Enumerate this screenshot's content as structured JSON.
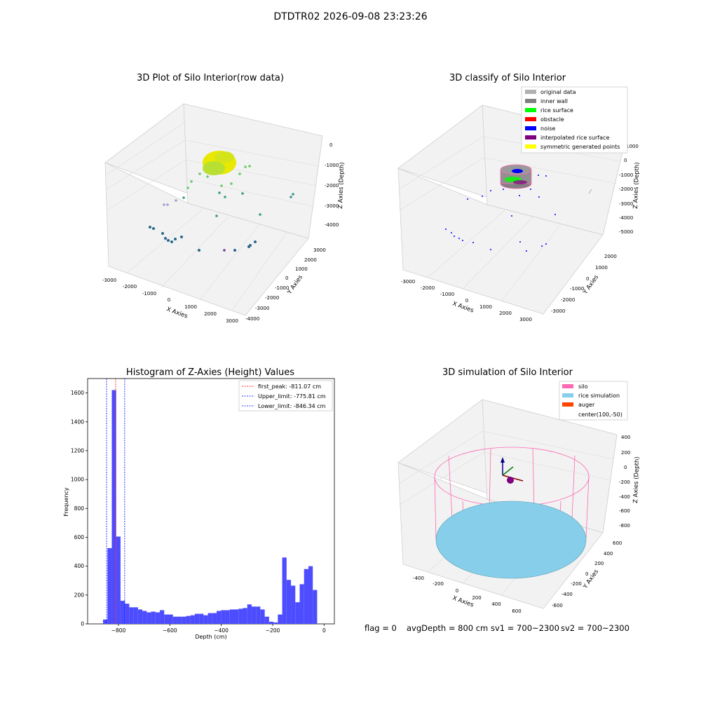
{
  "suptitle": "DTDTR02 2026-09-08 23:23:26",
  "footer": {
    "flag": "flag = 0",
    "avg": "avgDepth = 800 cm",
    "sv1": "sv1 = 700~2300",
    "sv2": "sv2 = 700~2300"
  },
  "chart_data": [
    {
      "type": "scatter",
      "title": "3D Plot of Silo Interior(row data)",
      "xlabel": "X Axies",
      "ylabel": "Y Axies",
      "zlabel": "Z Axies (Depth)",
      "x_ticks": [
        "-3000",
        "-2000",
        "-1000",
        "0",
        "1000",
        "2000",
        "3000"
      ],
      "y_ticks": [
        "3000",
        "2000",
        "1000",
        "0",
        "-1000",
        "-2000",
        "-3000",
        "-4000"
      ],
      "z_ticks": [
        "0",
        "-1000",
        "-2000",
        "-3000",
        "-4000"
      ],
      "colors": {
        "surface": "#e8e800",
        "mid": "#66cc66",
        "low": "#2a6a8a"
      }
    },
    {
      "type": "scatter",
      "title": "3D classify of Silo Interior",
      "xlabel": "X Axies",
      "ylabel": "Y Axies",
      "zlabel": "Z Axies (Depth)",
      "x_ticks": [
        "-3000",
        "-2000",
        "-1000",
        "0",
        "1000",
        "2000",
        "3000"
      ],
      "y_ticks": [
        "2000",
        "1000",
        "0",
        "-1000",
        "-2000",
        "-3000"
      ],
      "z_ticks": [
        "1000",
        "0",
        "-1000",
        "-2000",
        "-3000",
        "-4000",
        "-5000"
      ],
      "legend": [
        {
          "label": "original data",
          "color": "#b0b0b0"
        },
        {
          "label": "inner wall",
          "color": "#808080"
        },
        {
          "label": "rice surface",
          "color": "#00ff00"
        },
        {
          "label": "obstacle",
          "color": "#ff0000"
        },
        {
          "label": "noise",
          "color": "#0000ff"
        },
        {
          "label": "interpolated rice surface",
          "color": "#800080"
        },
        {
          "label": "symmetric generated points",
          "color": "#ffff00"
        }
      ]
    },
    {
      "type": "bar",
      "title": "Histogram of Z-Axies (Height) Values",
      "xlabel": "Depth (cm)",
      "ylabel": "Frequency",
      "xlim": [
        -920,
        40
      ],
      "ylim": [
        0,
        1700
      ],
      "x_ticks": [
        -800,
        -600,
        -400,
        -200,
        0
      ],
      "y_ticks": [
        0,
        200,
        400,
        600,
        800,
        1000,
        1200,
        1400,
        1600
      ],
      "bar_color": "#4d4dff",
      "bins": [
        {
          "x0": -860,
          "x1": -843,
          "count": 30
        },
        {
          "x0": -843,
          "x1": -826,
          "count": 525
        },
        {
          "x0": -826,
          "x1": -809,
          "count": 1620
        },
        {
          "x0": -809,
          "x1": -792,
          "count": 605
        },
        {
          "x0": -792,
          "x1": -775,
          "count": 160
        },
        {
          "x0": -775,
          "x1": -758,
          "count": 140
        },
        {
          "x0": -758,
          "x1": -741,
          "count": 115
        },
        {
          "x0": -741,
          "x1": -724,
          "count": 115
        },
        {
          "x0": -724,
          "x1": -707,
          "count": 100
        },
        {
          "x0": -707,
          "x1": -690,
          "count": 90
        },
        {
          "x0": -690,
          "x1": -673,
          "count": 80
        },
        {
          "x0": -673,
          "x1": -656,
          "count": 85
        },
        {
          "x0": -656,
          "x1": -639,
          "count": 80
        },
        {
          "x0": -639,
          "x1": -622,
          "count": 95
        },
        {
          "x0": -622,
          "x1": -605,
          "count": 65
        },
        {
          "x0": -605,
          "x1": -588,
          "count": 65
        },
        {
          "x0": -588,
          "x1": -571,
          "count": 50
        },
        {
          "x0": -571,
          "x1": -554,
          "count": 50
        },
        {
          "x0": -554,
          "x1": -537,
          "count": 50
        },
        {
          "x0": -537,
          "x1": -520,
          "count": 55
        },
        {
          "x0": -520,
          "x1": -503,
          "count": 60
        },
        {
          "x0": -503,
          "x1": -486,
          "count": 70
        },
        {
          "x0": -486,
          "x1": -469,
          "count": 70
        },
        {
          "x0": -469,
          "x1": -452,
          "count": 60
        },
        {
          "x0": -452,
          "x1": -435,
          "count": 75
        },
        {
          "x0": -435,
          "x1": -418,
          "count": 75
        },
        {
          "x0": -418,
          "x1": -401,
          "count": 90
        },
        {
          "x0": -401,
          "x1": -384,
          "count": 95
        },
        {
          "x0": -384,
          "x1": -367,
          "count": 95
        },
        {
          "x0": -367,
          "x1": -350,
          "count": 100
        },
        {
          "x0": -350,
          "x1": -333,
          "count": 100
        },
        {
          "x0": -333,
          "x1": -316,
          "count": 105
        },
        {
          "x0": -316,
          "x1": -299,
          "count": 110
        },
        {
          "x0": -299,
          "x1": -282,
          "count": 135
        },
        {
          "x0": -282,
          "x1": -265,
          "count": 120
        },
        {
          "x0": -265,
          "x1": -248,
          "count": 120
        },
        {
          "x0": -248,
          "x1": -231,
          "count": 100
        },
        {
          "x0": -231,
          "x1": -214,
          "count": 50
        },
        {
          "x0": -214,
          "x1": -197,
          "count": 15
        },
        {
          "x0": -197,
          "x1": -180,
          "count": 10
        },
        {
          "x0": -180,
          "x1": -163,
          "count": 65
        },
        {
          "x0": -163,
          "x1": -146,
          "count": 460
        },
        {
          "x0": -146,
          "x1": -129,
          "count": 305
        },
        {
          "x0": -129,
          "x1": -112,
          "count": 265
        },
        {
          "x0": -112,
          "x1": -95,
          "count": 150
        },
        {
          "x0": -95,
          "x1": -78,
          "count": 275
        },
        {
          "x0": -78,
          "x1": -61,
          "count": 380
        },
        {
          "x0": -61,
          "x1": -44,
          "count": 400
        },
        {
          "x0": -44,
          "x1": -27,
          "count": 235
        }
      ],
      "vlines": [
        {
          "label": "first_peak: -811.07 cm",
          "value": -811.07,
          "color": "#ff0000"
        },
        {
          "label": "Upper_limit: -775.81 cm",
          "value": -775.81,
          "color": "#0000ff"
        },
        {
          "label": "Lower_limit: -846.34 cm",
          "value": -846.34,
          "color": "#0000ff"
        }
      ]
    },
    {
      "type": "scatter",
      "title": "3D simulation of Silo Interior",
      "xlabel": "X Axies",
      "ylabel": "Y Axies",
      "zlabel": "Z Axies (Depth)",
      "x_ticks": [
        "-400",
        "-200",
        "0",
        "200",
        "400",
        "600"
      ],
      "y_ticks": [
        "600",
        "400",
        "200",
        "0",
        "-200",
        "-400",
        "-600"
      ],
      "z_ticks": [
        "400",
        "200",
        "0",
        "-200",
        "-400",
        "-600",
        "-800"
      ],
      "legend": [
        {
          "label": "silo",
          "color": "#ff69b4"
        },
        {
          "label": "rice simulation",
          "color": "#87ceeb"
        },
        {
          "label": "auger",
          "color": "#ff4500"
        },
        {
          "label": "center(100,-50)",
          "color": ""
        }
      ]
    }
  ]
}
